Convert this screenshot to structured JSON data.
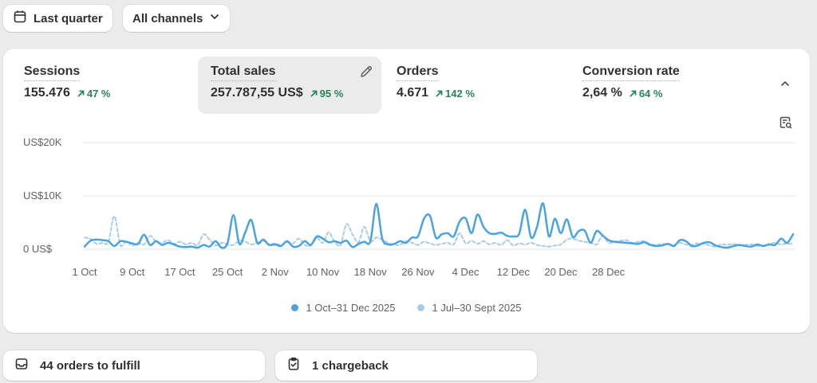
{
  "filters": {
    "date_range_label": "Last quarter",
    "channel_label": "All channels"
  },
  "metrics": [
    {
      "label": "Sessions",
      "value": "155.476",
      "delta": "47 %"
    },
    {
      "label": "Total sales",
      "value": "257.787,55 US$",
      "delta": "95 %"
    },
    {
      "label": "Orders",
      "value": "4.671",
      "delta": "142 %"
    },
    {
      "label": "Conversion rate",
      "value": "2,64 %",
      "delta": "64 %"
    }
  ],
  "colors": {
    "current": "#4aa3df",
    "previous": "#a8cbe8",
    "positive": "#29845a"
  },
  "chart_data": {
    "type": "line",
    "y_ticks": [
      "US$20K",
      "US$10K",
      "0 US$"
    ],
    "y_tick_values": [
      20000,
      10000,
      0
    ],
    "ylim": [
      0,
      20000
    ],
    "x_ticks": [
      "1 Oct",
      "9 Oct",
      "17 Oct",
      "25 Oct",
      "2 Nov",
      "10 Nov",
      "18 Nov",
      "26 Nov",
      "4 Dec",
      "12 Dec",
      "20 Dec",
      "28 Dec"
    ],
    "x_tick_index": [
      0,
      8,
      16,
      24,
      32,
      40,
      48,
      56,
      64,
      72,
      80,
      88
    ],
    "grid": true,
    "legend": "bottom-center",
    "series": [
      {
        "name": "1 Oct–31 Dec 2025",
        "style": "solid",
        "values": [
          500,
          1600,
          1800,
          1700,
          1500,
          600,
          1500,
          1400,
          1100,
          1000,
          2700,
          800,
          1500,
          800,
          1200,
          900,
          500,
          400,
          500,
          300,
          800,
          500,
          1500,
          300,
          1100,
          6400,
          1000,
          3200,
          5500,
          1200,
          1800,
          800,
          900,
          600,
          1500,
          500,
          600,
          1500,
          800,
          2400,
          2000,
          1300,
          1500,
          1200,
          1600,
          400,
          1000,
          1400,
          1500,
          8500,
          2000,
          900,
          1000,
          1500,
          1200,
          2200,
          2400,
          5700,
          6300,
          2200,
          2800,
          3000,
          2400,
          5200,
          5800,
          3000,
          6500,
          4200,
          3000,
          2900,
          3100,
          2500,
          2400,
          2900,
          7400,
          2200,
          4200,
          8600,
          2400,
          5700,
          3000,
          5600,
          2300,
          3400,
          3500,
          1200,
          3400,
          2600,
          1700,
          1400,
          1300,
          1200,
          1100,
          1000,
          1300,
          800,
          600,
          700,
          1000,
          600,
          1700,
          1500,
          600,
          700,
          1200,
          1300,
          700,
          400,
          300,
          600,
          800,
          600,
          500,
          900,
          600,
          900,
          800,
          2000,
          1200,
          2800
        ]
      },
      {
        "name": "1 Jul–30 Sept 2025",
        "style": "dashed",
        "values": [
          2200,
          1900,
          1000,
          1200,
          1300,
          6200,
          800,
          1500,
          700,
          1200,
          900,
          2500,
          1400,
          1200,
          1700,
          1000,
          1400,
          900,
          1200,
          800,
          2800,
          1800,
          700,
          1200,
          900,
          800,
          1600,
          1400,
          900,
          1200,
          1600,
          900,
          1100,
          800,
          1300,
          1100,
          2000,
          800,
          700,
          2100,
          1200,
          3200,
          1400,
          800,
          4700,
          2800,
          1300,
          4200,
          1500,
          2200,
          1800,
          1200,
          900,
          800,
          1500,
          1200,
          800,
          1400,
          1100,
          800,
          1000,
          1200,
          900,
          3000,
          1100,
          1600,
          1000,
          1500,
          900,
          1200,
          800,
          1700,
          700,
          1100,
          900,
          1200,
          800,
          600,
          500,
          700,
          900,
          1800,
          2000,
          1600,
          1400,
          1200,
          900,
          2500,
          1200,
          1400,
          1600,
          1700,
          1200,
          1400,
          1500,
          1000,
          800,
          1000,
          900,
          800,
          1200,
          900,
          800,
          1100,
          1000,
          700,
          500,
          900,
          800,
          1000,
          700,
          800,
          900,
          600,
          700,
          1000,
          1200,
          900,
          1100,
          900
        ]
      }
    ]
  },
  "tasks": {
    "orders_to_fulfill": "44 orders to fulfill",
    "chargebacks": "1 chargeback"
  }
}
